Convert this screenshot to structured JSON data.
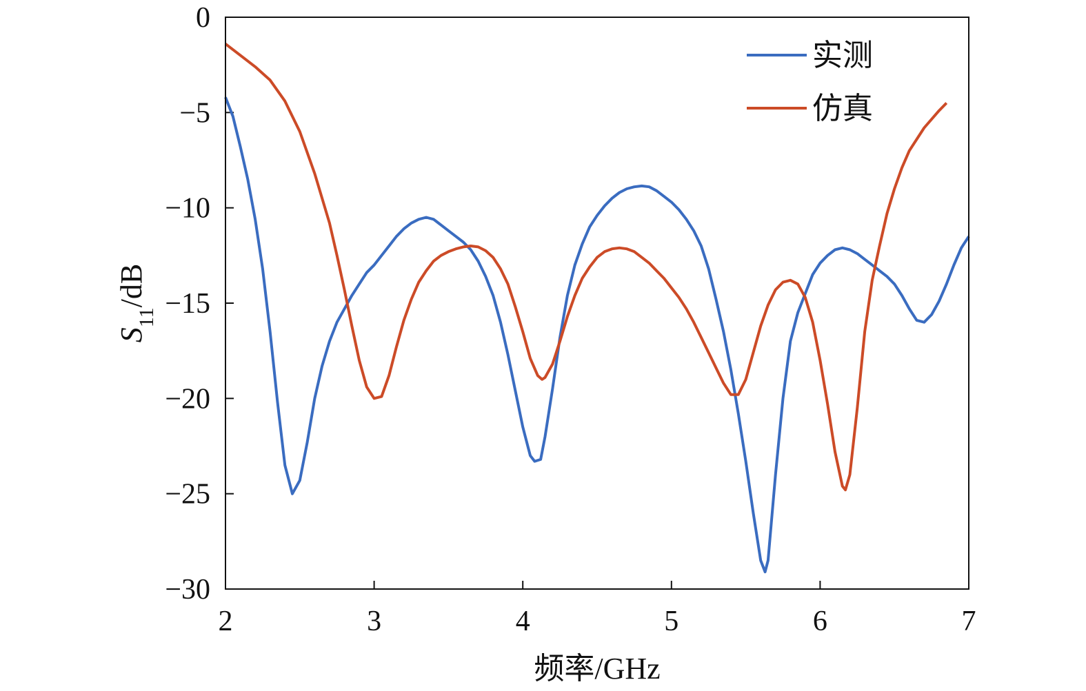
{
  "chart_data": {
    "type": "line",
    "xlabel": "频率/GHz",
    "ylabel": {
      "main": "S",
      "sub": "11",
      "unit": "/dB"
    },
    "xlim": [
      2,
      7
    ],
    "ylim": [
      -30,
      0
    ],
    "xticks": [
      "2",
      "3",
      "4",
      "5",
      "6",
      "7"
    ],
    "yticks": [
      "0",
      "−5",
      "−10",
      "−15",
      "−20",
      "−25",
      "−30"
    ],
    "grid": false,
    "legend_position": "top-right",
    "series": [
      {
        "name": "实测",
        "color": "#3a6cc0",
        "points": [
          [
            2.0,
            -4.2
          ],
          [
            2.05,
            -5.2
          ],
          [
            2.1,
            -6.8
          ],
          [
            2.15,
            -8.5
          ],
          [
            2.2,
            -10.6
          ],
          [
            2.25,
            -13.2
          ],
          [
            2.3,
            -16.5
          ],
          [
            2.35,
            -20.2
          ],
          [
            2.4,
            -23.5
          ],
          [
            2.45,
            -25.0
          ],
          [
            2.5,
            -24.3
          ],
          [
            2.55,
            -22.3
          ],
          [
            2.6,
            -20.0
          ],
          [
            2.65,
            -18.3
          ],
          [
            2.7,
            -17.0
          ],
          [
            2.75,
            -16.0
          ],
          [
            2.8,
            -15.3
          ],
          [
            2.85,
            -14.6
          ],
          [
            2.9,
            -14.0
          ],
          [
            2.95,
            -13.4
          ],
          [
            3.0,
            -13.0
          ],
          [
            3.05,
            -12.5
          ],
          [
            3.1,
            -12.0
          ],
          [
            3.15,
            -11.5
          ],
          [
            3.2,
            -11.1
          ],
          [
            3.25,
            -10.8
          ],
          [
            3.3,
            -10.6
          ],
          [
            3.35,
            -10.5
          ],
          [
            3.4,
            -10.6
          ],
          [
            3.45,
            -10.9
          ],
          [
            3.5,
            -11.2
          ],
          [
            3.55,
            -11.5
          ],
          [
            3.6,
            -11.8
          ],
          [
            3.65,
            -12.2
          ],
          [
            3.7,
            -12.8
          ],
          [
            3.75,
            -13.6
          ],
          [
            3.8,
            -14.6
          ],
          [
            3.85,
            -16.0
          ],
          [
            3.9,
            -17.7
          ],
          [
            3.95,
            -19.6
          ],
          [
            4.0,
            -21.5
          ],
          [
            4.05,
            -23.0
          ],
          [
            4.08,
            -23.3
          ],
          [
            4.12,
            -23.2
          ],
          [
            4.15,
            -22.0
          ],
          [
            4.2,
            -19.5
          ],
          [
            4.25,
            -16.8
          ],
          [
            4.3,
            -14.6
          ],
          [
            4.35,
            -13.0
          ],
          [
            4.4,
            -11.9
          ],
          [
            4.45,
            -11.0
          ],
          [
            4.5,
            -10.4
          ],
          [
            4.55,
            -9.9
          ],
          [
            4.6,
            -9.5
          ],
          [
            4.65,
            -9.2
          ],
          [
            4.7,
            -9.0
          ],
          [
            4.75,
            -8.9
          ],
          [
            4.8,
            -8.85
          ],
          [
            4.85,
            -8.9
          ],
          [
            4.9,
            -9.1
          ],
          [
            4.95,
            -9.4
          ],
          [
            5.0,
            -9.7
          ],
          [
            5.05,
            -10.1
          ],
          [
            5.1,
            -10.6
          ],
          [
            5.15,
            -11.2
          ],
          [
            5.2,
            -12.0
          ],
          [
            5.25,
            -13.2
          ],
          [
            5.3,
            -14.8
          ],
          [
            5.35,
            -16.5
          ],
          [
            5.4,
            -18.5
          ],
          [
            5.45,
            -20.8
          ],
          [
            5.5,
            -23.3
          ],
          [
            5.55,
            -26.0
          ],
          [
            5.6,
            -28.5
          ],
          [
            5.63,
            -29.1
          ],
          [
            5.65,
            -28.5
          ],
          [
            5.7,
            -24.0
          ],
          [
            5.75,
            -20.0
          ],
          [
            5.8,
            -17.0
          ],
          [
            5.85,
            -15.5
          ],
          [
            5.9,
            -14.5
          ],
          [
            5.95,
            -13.5
          ],
          [
            6.0,
            -12.9
          ],
          [
            6.05,
            -12.5
          ],
          [
            6.1,
            -12.2
          ],
          [
            6.15,
            -12.1
          ],
          [
            6.2,
            -12.2
          ],
          [
            6.25,
            -12.4
          ],
          [
            6.3,
            -12.7
          ],
          [
            6.35,
            -13.0
          ],
          [
            6.4,
            -13.3
          ],
          [
            6.45,
            -13.6
          ],
          [
            6.5,
            -14.0
          ],
          [
            6.55,
            -14.6
          ],
          [
            6.6,
            -15.3
          ],
          [
            6.65,
            -15.9
          ],
          [
            6.7,
            -16.0
          ],
          [
            6.75,
            -15.6
          ],
          [
            6.8,
            -14.9
          ],
          [
            6.85,
            -14.0
          ],
          [
            6.9,
            -13.0
          ],
          [
            6.95,
            -12.1
          ],
          [
            7.0,
            -11.5
          ]
        ]
      },
      {
        "name": "仿真",
        "color": "#cc4b27",
        "points": [
          [
            2.0,
            -1.4
          ],
          [
            2.1,
            -2.0
          ],
          [
            2.2,
            -2.6
          ],
          [
            2.3,
            -3.3
          ],
          [
            2.4,
            -4.4
          ],
          [
            2.5,
            -6.0
          ],
          [
            2.6,
            -8.2
          ],
          [
            2.7,
            -10.8
          ],
          [
            2.75,
            -12.5
          ],
          [
            2.8,
            -14.3
          ],
          [
            2.85,
            -16.2
          ],
          [
            2.9,
            -18.0
          ],
          [
            2.95,
            -19.4
          ],
          [
            3.0,
            -20.0
          ],
          [
            3.05,
            -19.9
          ],
          [
            3.1,
            -18.8
          ],
          [
            3.15,
            -17.3
          ],
          [
            3.2,
            -15.9
          ],
          [
            3.25,
            -14.8
          ],
          [
            3.3,
            -13.9
          ],
          [
            3.35,
            -13.3
          ],
          [
            3.4,
            -12.8
          ],
          [
            3.45,
            -12.5
          ],
          [
            3.5,
            -12.3
          ],
          [
            3.55,
            -12.15
          ],
          [
            3.6,
            -12.05
          ],
          [
            3.65,
            -12.0
          ],
          [
            3.7,
            -12.05
          ],
          [
            3.75,
            -12.25
          ],
          [
            3.8,
            -12.6
          ],
          [
            3.85,
            -13.2
          ],
          [
            3.9,
            -14.0
          ],
          [
            3.95,
            -15.2
          ],
          [
            4.0,
            -16.5
          ],
          [
            4.05,
            -17.9
          ],
          [
            4.1,
            -18.8
          ],
          [
            4.13,
            -19.0
          ],
          [
            4.15,
            -18.9
          ],
          [
            4.2,
            -18.2
          ],
          [
            4.25,
            -17.0
          ],
          [
            4.3,
            -15.7
          ],
          [
            4.35,
            -14.6
          ],
          [
            4.4,
            -13.7
          ],
          [
            4.45,
            -13.1
          ],
          [
            4.5,
            -12.6
          ],
          [
            4.55,
            -12.3
          ],
          [
            4.6,
            -12.15
          ],
          [
            4.65,
            -12.1
          ],
          [
            4.7,
            -12.15
          ],
          [
            4.75,
            -12.3
          ],
          [
            4.8,
            -12.6
          ],
          [
            4.85,
            -12.9
          ],
          [
            4.9,
            -13.3
          ],
          [
            4.95,
            -13.7
          ],
          [
            5.0,
            -14.2
          ],
          [
            5.05,
            -14.7
          ],
          [
            5.1,
            -15.3
          ],
          [
            5.15,
            -16.0
          ],
          [
            5.2,
            -16.8
          ],
          [
            5.25,
            -17.6
          ],
          [
            5.3,
            -18.4
          ],
          [
            5.35,
            -19.2
          ],
          [
            5.4,
            -19.8
          ],
          [
            5.45,
            -19.8
          ],
          [
            5.5,
            -19.0
          ],
          [
            5.55,
            -17.6
          ],
          [
            5.6,
            -16.2
          ],
          [
            5.65,
            -15.1
          ],
          [
            5.7,
            -14.3
          ],
          [
            5.75,
            -13.9
          ],
          [
            5.8,
            -13.8
          ],
          [
            5.85,
            -14.0
          ],
          [
            5.9,
            -14.7
          ],
          [
            5.95,
            -16.0
          ],
          [
            6.0,
            -18.0
          ],
          [
            6.05,
            -20.3
          ],
          [
            6.1,
            -22.8
          ],
          [
            6.15,
            -24.6
          ],
          [
            6.17,
            -24.8
          ],
          [
            6.2,
            -24.0
          ],
          [
            6.25,
            -20.5
          ],
          [
            6.3,
            -16.5
          ],
          [
            6.35,
            -13.8
          ],
          [
            6.4,
            -12.0
          ],
          [
            6.45,
            -10.3
          ],
          [
            6.5,
            -9.0
          ],
          [
            6.55,
            -7.9
          ],
          [
            6.6,
            -7.0
          ],
          [
            6.7,
            -5.8
          ],
          [
            6.8,
            -4.9
          ],
          [
            6.85,
            -4.5
          ]
        ]
      }
    ]
  }
}
